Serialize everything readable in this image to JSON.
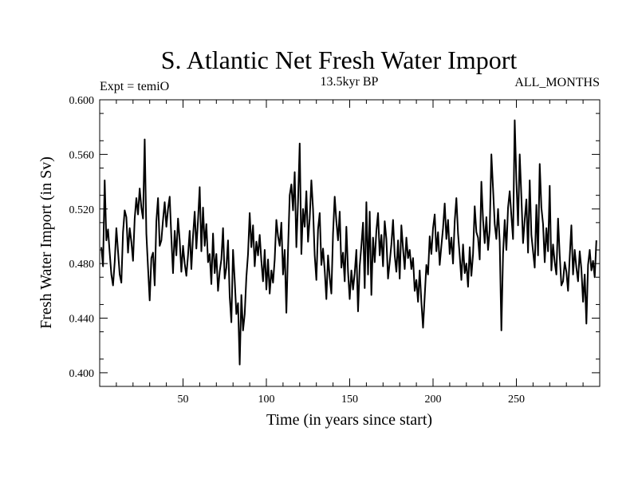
{
  "chart_data": {
    "type": "line",
    "title": "S. Atlantic Net Fresh Water Import",
    "left_note": "Expt = temiO",
    "center_note": "13.5kyr BP",
    "right_note": "ALL_MONTHS",
    "xlabel": "Time (in years since start)",
    "ylabel": "Fresh Water Import (in Sv)",
    "xlim": [
      0,
      300
    ],
    "ylim": [
      0.39,
      0.6
    ],
    "xticks": [
      50,
      100,
      150,
      200,
      250
    ],
    "yticks": [
      0.4,
      0.44,
      0.48,
      0.52,
      0.56,
      0.6
    ],
    "ytick_labels": [
      "0.400",
      "0.440",
      "0.480",
      "0.520",
      "0.560",
      "0.600"
    ],
    "series": [
      {
        "name": "Fresh Water Import",
        "x_start": 1,
        "x_step": 1,
        "values": [
          0.492,
          0.478,
          0.541,
          0.497,
          0.505,
          0.488,
          0.472,
          0.464,
          0.481,
          0.506,
          0.489,
          0.472,
          0.466,
          0.503,
          0.519,
          0.514,
          0.488,
          0.506,
          0.496,
          0.482,
          0.513,
          0.528,
          0.516,
          0.535,
          0.521,
          0.513,
          0.571,
          0.502,
          0.477,
          0.453,
          0.484,
          0.488,
          0.464,
          0.511,
          0.528,
          0.493,
          0.497,
          0.512,
          0.525,
          0.507,
          0.52,
          0.529,
          0.499,
          0.473,
          0.504,
          0.486,
          0.513,
          0.497,
          0.474,
          0.493,
          0.48,
          0.471,
          0.486,
          0.504,
          0.476,
          0.5,
          0.518,
          0.491,
          0.512,
          0.536,
          0.489,
          0.521,
          0.493,
          0.509,
          0.481,
          0.487,
          0.465,
          0.502,
          0.473,
          0.487,
          0.46,
          0.474,
          0.483,
          0.506,
          0.469,
          0.477,
          0.497,
          0.456,
          0.437,
          0.49,
          0.468,
          0.443,
          0.451,
          0.406,
          0.457,
          0.431,
          0.443,
          0.47,
          0.487,
          0.517,
          0.492,
          0.508,
          0.478,
          0.496,
          0.486,
          0.501,
          0.482,
          0.467,
          0.49,
          0.461,
          0.483,
          0.458,
          0.475,
          0.466,
          0.483,
          0.512,
          0.5,
          0.493,
          0.51,
          0.472,
          0.49,
          0.444,
          0.49,
          0.53,
          0.538,
          0.519,
          0.547,
          0.492,
          0.525,
          0.568,
          0.487,
          0.52,
          0.507,
          0.533,
          0.496,
          0.513,
          0.541,
          0.52,
          0.486,
          0.468,
          0.505,
          0.517,
          0.479,
          0.491,
          0.475,
          0.454,
          0.486,
          0.47,
          0.458,
          0.502,
          0.529,
          0.511,
          0.497,
          0.518,
          0.477,
          0.488,
          0.467,
          0.507,
          0.474,
          0.454,
          0.475,
          0.461,
          0.473,
          0.49,
          0.445,
          0.478,
          0.493,
          0.51,
          0.462,
          0.525,
          0.472,
          0.518,
          0.457,
          0.499,
          0.481,
          0.504,
          0.517,
          0.486,
          0.501,
          0.478,
          0.511,
          0.498,
          0.469,
          0.481,
          0.494,
          0.512,
          0.486,
          0.474,
          0.497,
          0.469,
          0.508,
          0.491,
          0.476,
          0.499,
          0.484,
          0.49,
          0.476,
          0.484,
          0.46,
          0.468,
          0.452,
          0.475,
          0.452,
          0.433,
          0.456,
          0.479,
          0.472,
          0.5,
          0.487,
          0.506,
          0.516,
          0.489,
          0.503,
          0.479,
          0.493,
          0.506,
          0.524,
          0.498,
          0.512,
          0.487,
          0.499,
          0.48,
          0.511,
          0.528,
          0.502,
          0.486,
          0.468,
          0.494,
          0.473,
          0.48,
          0.463,
          0.492,
          0.471,
          0.487,
          0.522,
          0.503,
          0.499,
          0.483,
          0.54,
          0.512,
          0.495,
          0.514,
          0.49,
          0.505,
          0.56,
          0.535,
          0.509,
          0.498,
          0.52,
          0.496,
          0.431,
          0.487,
          0.512,
          0.49,
          0.521,
          0.533,
          0.515,
          0.498,
          0.585,
          0.541,
          0.508,
          0.56,
          0.529,
          0.495,
          0.512,
          0.527,
          0.488,
          0.541,
          0.501,
          0.489,
          0.477,
          0.523,
          0.486,
          0.553,
          0.521,
          0.509,
          0.481,
          0.506,
          0.489,
          0.537,
          0.475,
          0.494,
          0.481,
          0.472,
          0.513,
          0.486,
          0.464,
          0.467,
          0.481,
          0.474,
          0.46,
          0.485,
          0.508,
          0.472,
          0.49,
          0.477,
          0.467,
          0.489,
          0.476,
          0.452,
          0.472,
          0.436,
          0.479,
          0.49,
          0.475,
          0.482,
          0.47,
          0.497
        ]
      }
    ]
  }
}
